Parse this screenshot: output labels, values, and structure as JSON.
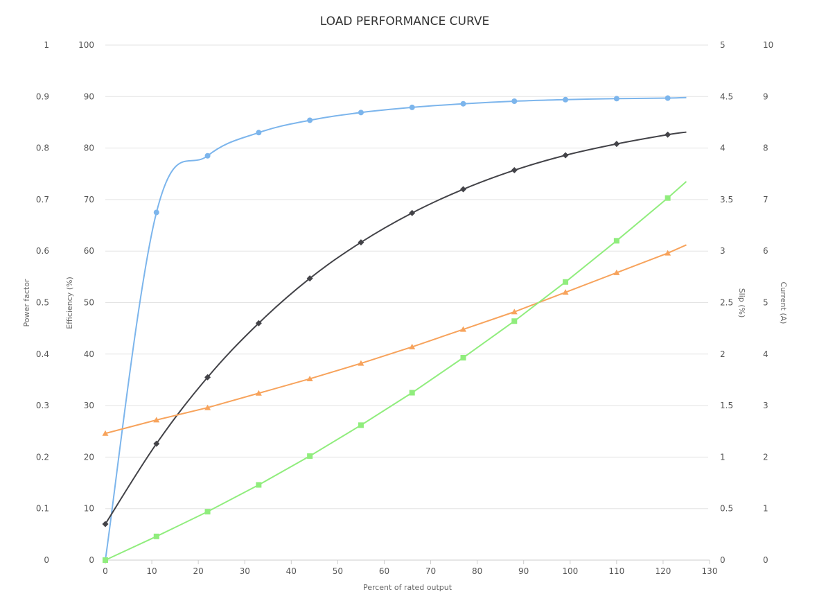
{
  "chart_data": {
    "type": "line",
    "title": "LOAD PERFORMANCE CURVE",
    "xlabel": "Percent of rated output",
    "xlim": [
      0,
      130
    ],
    "xticks": [
      "0",
      "10",
      "20",
      "30",
      "40",
      "50",
      "60",
      "70",
      "80",
      "90",
      "100",
      "110",
      "120",
      "130"
    ],
    "grid": true,
    "axes": {
      "power_factor": {
        "label": "Power factor",
        "range": [
          0,
          1
        ],
        "ticks": [
          "0",
          "0.1",
          "0.2",
          "0.3",
          "0.4",
          "0.5",
          "0.6",
          "0.7",
          "0.8",
          "0.9",
          "1"
        ]
      },
      "efficiency": {
        "label": "Efficiency (%)",
        "range": [
          0,
          100
        ],
        "ticks": [
          "0",
          "10",
          "20",
          "30",
          "40",
          "50",
          "60",
          "70",
          "80",
          "90",
          "100"
        ]
      },
      "slip": {
        "label": "Slip (%)",
        "range": [
          0,
          5
        ],
        "ticks": [
          "0",
          "0.5",
          "1",
          "1.5",
          "2",
          "2.5",
          "3",
          "3.5",
          "4",
          "4.5",
          "5"
        ]
      },
      "current": {
        "label": "Current (A)",
        "range": [
          0,
          10
        ],
        "ticks": [
          "0",
          "1",
          "2",
          "3",
          "4",
          "5",
          "6",
          "7",
          "8",
          "9",
          "10"
        ]
      }
    },
    "series": [
      {
        "axis": "efficiency",
        "color": "#7cb5ec",
        "marker": "circle",
        "smooth": true,
        "points": [
          [
            0,
            0
          ],
          [
            11,
            67.5
          ],
          [
            22,
            78.5
          ],
          [
            33,
            83
          ],
          [
            44,
            85.4
          ],
          [
            55,
            86.9
          ],
          [
            66,
            87.9
          ],
          [
            77,
            88.6
          ],
          [
            88,
            89.1
          ],
          [
            99,
            89.4
          ],
          [
            110,
            89.6
          ],
          [
            121,
            89.7
          ],
          [
            125,
            89.8
          ]
        ]
      },
      {
        "axis": "power_factor",
        "color": "#434348",
        "marker": "diamond",
        "smooth": true,
        "points": [
          [
            0,
            0.07
          ],
          [
            11,
            0.226
          ],
          [
            22,
            0.355
          ],
          [
            33,
            0.46
          ],
          [
            44,
            0.547
          ],
          [
            55,
            0.617
          ],
          [
            66,
            0.674
          ],
          [
            77,
            0.72
          ],
          [
            88,
            0.757
          ],
          [
            99,
            0.786
          ],
          [
            110,
            0.808
          ],
          [
            121,
            0.826
          ],
          [
            125,
            0.831
          ]
        ]
      },
      {
        "axis": "slip",
        "color": "#f7a35c",
        "marker": "triangle",
        "smooth": false,
        "points": [
          [
            0,
            1.23
          ],
          [
            11,
            1.36
          ],
          [
            22,
            1.48
          ],
          [
            33,
            1.62
          ],
          [
            44,
            1.76
          ],
          [
            55,
            1.91
          ],
          [
            66,
            2.07
          ],
          [
            77,
            2.24
          ],
          [
            88,
            2.41
          ],
          [
            99,
            2.6
          ],
          [
            110,
            2.79
          ],
          [
            121,
            2.98
          ],
          [
            125,
            3.06
          ]
        ]
      },
      {
        "axis": "current",
        "color": "#90ed7d",
        "marker": "square",
        "smooth": false,
        "points": [
          [
            0,
            0
          ],
          [
            11,
            0.46
          ],
          [
            22,
            0.94
          ],
          [
            33,
            1.46
          ],
          [
            44,
            2.02
          ],
          [
            55,
            2.62
          ],
          [
            66,
            3.25
          ],
          [
            77,
            3.93
          ],
          [
            88,
            4.64
          ],
          [
            99,
            5.4
          ],
          [
            110,
            6.2
          ],
          [
            121,
            7.03
          ],
          [
            125,
            7.35
          ]
        ]
      }
    ]
  }
}
